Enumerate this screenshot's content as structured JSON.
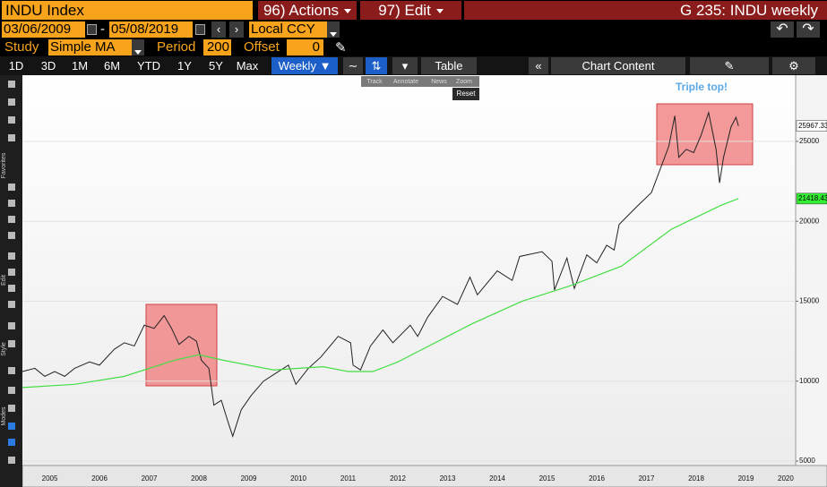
{
  "header": {
    "ticker": "INDU Index",
    "actions": "96) Actions",
    "edit": "97) Edit",
    "window": "G 235: INDU weekly"
  },
  "controls": {
    "start_date": "03/06/2009",
    "end_date": "05/08/2019",
    "currency": "Local CCY",
    "study_label": "Study",
    "study": "Simple MA",
    "period_label": "Period",
    "period": "200",
    "offset_label": "Offset",
    "offset": "0"
  },
  "toolbar": {
    "ranges": [
      "1D",
      "3D",
      "1M",
      "6M",
      "YTD",
      "1Y",
      "5Y",
      "Max"
    ],
    "frequency": "Weekly",
    "table": "Table",
    "chart_content": "Chart Content",
    "tools": [
      "Track",
      "Annotate",
      "News",
      "Zoom"
    ],
    "reset": "Reset"
  },
  "side_labels": [
    "Favorites",
    "Edit",
    "Style",
    "Modes"
  ],
  "chart_data": {
    "type": "line",
    "annotation": "Triple top!",
    "xlim": [
      2004.95,
      2020.5
    ],
    "ylim": [
      4720,
      29140
    ],
    "yticks": [
      5000,
      10000,
      15000,
      20000,
      25000
    ],
    "grid": true,
    "xticks": [
      {
        "value": 2005.5,
        "label": "2005"
      },
      {
        "value": 2006.5,
        "label": "2006"
      },
      {
        "value": 2007.5,
        "label": "2007"
      },
      {
        "value": 2008.5,
        "label": "2008"
      },
      {
        "value": 2009.5,
        "label": "2009"
      },
      {
        "value": 2010.5,
        "label": "2010"
      },
      {
        "value": 2011.5,
        "label": "2011"
      },
      {
        "value": 2012.5,
        "label": "2012"
      },
      {
        "value": 2013.5,
        "label": "2013"
      },
      {
        "value": 2014.5,
        "label": "2014"
      },
      {
        "value": 2015.5,
        "label": "2015"
      },
      {
        "value": 2016.5,
        "label": "2016"
      },
      {
        "value": 2017.5,
        "label": "2017"
      },
      {
        "value": 2018.5,
        "label": "2018"
      },
      {
        "value": 2019.5,
        "label": "2019"
      },
      {
        "value": 2020.3,
        "label": "2020"
      }
    ],
    "series": [
      {
        "color": "#222222",
        "label_bg": "#ffffff",
        "x": [
          2004.95,
          2005.2,
          2005.4,
          2005.6,
          2005.8,
          2006.0,
          2006.3,
          2006.5,
          2006.8,
          2007.0,
          2007.2,
          2007.4,
          2007.6,
          2007.8,
          2007.95,
          2008.1,
          2008.3,
          2008.45,
          2008.55,
          2008.7,
          2008.8,
          2008.95,
          2009.1,
          2009.18,
          2009.35,
          2009.55,
          2009.8,
          2010.0,
          2010.3,
          2010.45,
          2010.7,
          2010.95,
          2011.3,
          2011.55,
          2011.6,
          2011.75,
          2011.95,
          2012.2,
          2012.4,
          2012.75,
          2012.9,
          2013.1,
          2013.4,
          2013.7,
          2013.95,
          2014.1,
          2014.5,
          2014.8,
          2014.95,
          2015.4,
          2015.6,
          2015.65,
          2015.9,
          2016.05,
          2016.3,
          2016.5,
          2016.7,
          2016.85,
          2016.95,
          2017.3,
          2017.6,
          2017.95,
          2018.07,
          2018.15,
          2018.3,
          2018.45,
          2018.6,
          2018.75,
          2018.9,
          2018.97,
          2019.05,
          2019.2,
          2019.3,
          2019.35
        ],
        "values": [
          10600,
          10800,
          10300,
          10600,
          10300,
          10800,
          11200,
          11000,
          12000,
          12400,
          12200,
          13500,
          13300,
          14100,
          13300,
          12300,
          12800,
          12500,
          11300,
          10800,
          8500,
          8800,
          7300,
          6550,
          8200,
          9100,
          10000,
          10400,
          11000,
          9800,
          10800,
          11500,
          12800,
          12400,
          11000,
          10700,
          12200,
          13200,
          12400,
          13500,
          12800,
          14000,
          15300,
          14800,
          16500,
          15400,
          16900,
          16300,
          17800,
          18100,
          17500,
          15700,
          17700,
          15800,
          17900,
          17400,
          18500,
          18200,
          19800,
          20900,
          21800,
          24700,
          26600,
          24000,
          24500,
          24300,
          25400,
          26800,
          24500,
          22400,
          24000,
          25900,
          26500,
          25967.33
        ]
      },
      {
        "color": "#44dd44",
        "label_bg": "#33ee33",
        "x": [
          2004.95,
          2006,
          2007,
          2008,
          2008.5,
          2009,
          2010,
          2011,
          2011.5,
          2012,
          2012.5,
          2013,
          2014,
          2015,
          2016,
          2017,
          2018,
          2019,
          2019.35
        ],
        "values": [
          9600,
          9800,
          10300,
          11300,
          11650,
          11300,
          10700,
          10900,
          10600,
          10600,
          11200,
          12000,
          13600,
          15000,
          16000,
          17200,
          19500,
          21000,
          21418.43
        ]
      }
    ]
  }
}
